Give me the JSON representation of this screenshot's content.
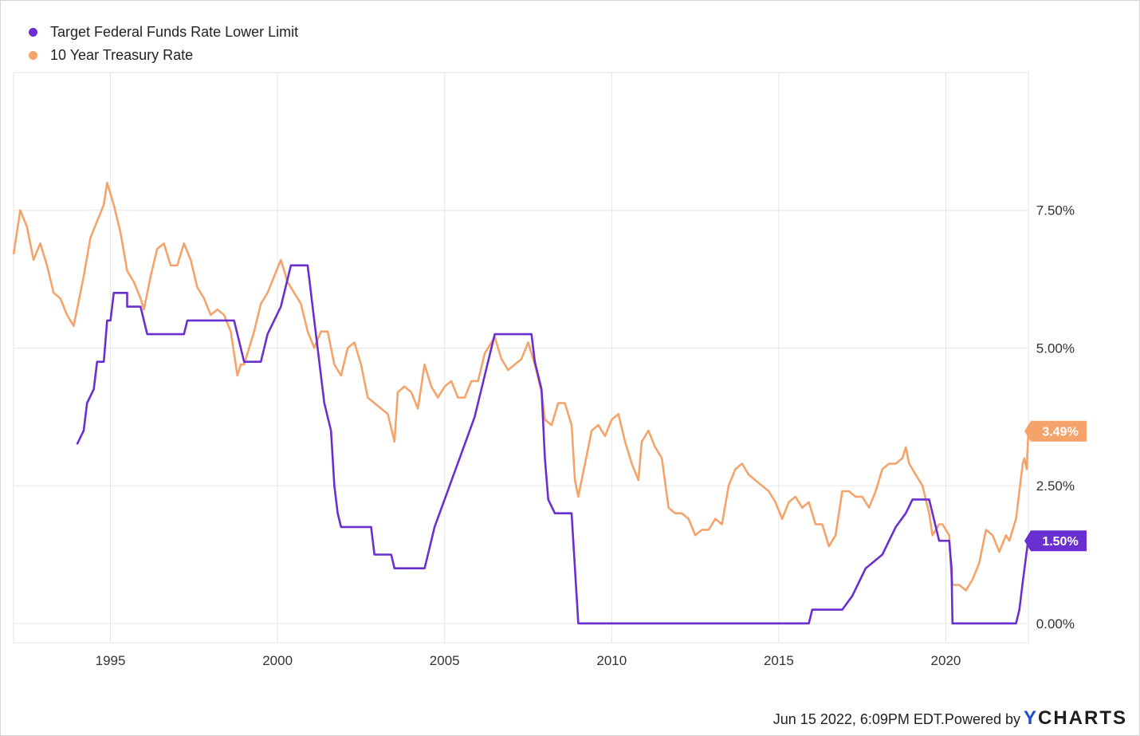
{
  "chart_data": {
    "type": "line",
    "title": "",
    "xlabel": "",
    "ylabel": "",
    "xlim": [
      1992.1,
      2022.47
    ],
    "ylim": [
      -0.35,
      10.0
    ],
    "x_ticks": [
      1995,
      2000,
      2005,
      2010,
      2015,
      2020
    ],
    "x_tick_labels": [
      "1995",
      "2000",
      "2005",
      "2010",
      "2015",
      "2020"
    ],
    "y_ticks": [
      0,
      2.5,
      5,
      7.5
    ],
    "y_tick_labels": [
      "0.00%",
      "2.50%",
      "5.00%",
      "7.50%"
    ],
    "grid": true,
    "legend_position": "top-left",
    "series": [
      {
        "name": "Target Federal Funds Rate Lower Limit",
        "color": "#6a2fd0",
        "end_label": "1.50%",
        "points": [
          [
            1994.0,
            3.25
          ],
          [
            1994.2,
            3.5
          ],
          [
            1994.3,
            4.0
          ],
          [
            1994.5,
            4.25
          ],
          [
            1994.6,
            4.75
          ],
          [
            1994.8,
            4.75
          ],
          [
            1994.9,
            5.5
          ],
          [
            1995.0,
            5.5
          ],
          [
            1995.1,
            6.0
          ],
          [
            1995.5,
            6.0
          ],
          [
            1995.5,
            5.75
          ],
          [
            1995.9,
            5.75
          ],
          [
            1996.0,
            5.5
          ],
          [
            1996.1,
            5.25
          ],
          [
            1997.2,
            5.25
          ],
          [
            1997.3,
            5.5
          ],
          [
            1998.7,
            5.5
          ],
          [
            1998.8,
            5.25
          ],
          [
            1998.9,
            5.0
          ],
          [
            1999.0,
            4.75
          ],
          [
            1999.5,
            4.75
          ],
          [
            1999.6,
            5.0
          ],
          [
            1999.7,
            5.25
          ],
          [
            1999.9,
            5.5
          ],
          [
            2000.1,
            5.75
          ],
          [
            2000.2,
            6.0
          ],
          [
            2000.4,
            6.5
          ],
          [
            2000.9,
            6.5
          ],
          [
            2001.0,
            6.0
          ],
          [
            2001.1,
            5.5
          ],
          [
            2001.2,
            5.0
          ],
          [
            2001.3,
            4.5
          ],
          [
            2001.4,
            4.0
          ],
          [
            2001.6,
            3.5
          ],
          [
            2001.7,
            2.5
          ],
          [
            2001.8,
            2.0
          ],
          [
            2001.9,
            1.75
          ],
          [
            2002.8,
            1.75
          ],
          [
            2002.9,
            1.25
          ],
          [
            2003.4,
            1.25
          ],
          [
            2003.5,
            1.0
          ],
          [
            2004.4,
            1.0
          ],
          [
            2004.5,
            1.25
          ],
          [
            2004.7,
            1.75
          ],
          [
            2005.0,
            2.25
          ],
          [
            2005.3,
            2.75
          ],
          [
            2005.6,
            3.25
          ],
          [
            2005.9,
            3.75
          ],
          [
            2006.2,
            4.5
          ],
          [
            2006.4,
            5.0
          ],
          [
            2006.5,
            5.25
          ],
          [
            2007.6,
            5.25
          ],
          [
            2007.7,
            4.75
          ],
          [
            2007.8,
            4.5
          ],
          [
            2007.9,
            4.25
          ],
          [
            2008.0,
            3.0
          ],
          [
            2008.1,
            2.25
          ],
          [
            2008.3,
            2.0
          ],
          [
            2008.8,
            2.0
          ],
          [
            2008.9,
            1.0
          ],
          [
            2009.0,
            0.0
          ],
          [
            2015.9,
            0.0
          ],
          [
            2016.0,
            0.25
          ],
          [
            2016.9,
            0.25
          ],
          [
            2017.2,
            0.5
          ],
          [
            2017.4,
            0.75
          ],
          [
            2017.6,
            1.0
          ],
          [
            2018.1,
            1.25
          ],
          [
            2018.3,
            1.5
          ],
          [
            2018.5,
            1.75
          ],
          [
            2018.8,
            2.0
          ],
          [
            2019.0,
            2.25
          ],
          [
            2019.5,
            2.25
          ],
          [
            2019.6,
            2.0
          ],
          [
            2019.7,
            1.75
          ],
          [
            2019.8,
            1.5
          ],
          [
            2020.1,
            1.5
          ],
          [
            2020.17,
            1.0
          ],
          [
            2020.2,
            0.0
          ],
          [
            2022.1,
            0.0
          ],
          [
            2022.2,
            0.25
          ],
          [
            2022.3,
            0.75
          ],
          [
            2022.46,
            1.5
          ]
        ]
      },
      {
        "name": "10 Year Treasury Rate",
        "color": "#f4a46b",
        "end_label": "3.49%",
        "points": [
          [
            1992.1,
            6.7
          ],
          [
            1992.3,
            7.5
          ],
          [
            1992.5,
            7.2
          ],
          [
            1992.7,
            6.6
          ],
          [
            1992.9,
            6.9
          ],
          [
            1993.1,
            6.5
          ],
          [
            1993.3,
            6.0
          ],
          [
            1993.5,
            5.9
          ],
          [
            1993.7,
            5.6
          ],
          [
            1993.9,
            5.4
          ],
          [
            1994.0,
            5.7
          ],
          [
            1994.2,
            6.3
          ],
          [
            1994.4,
            7.0
          ],
          [
            1994.6,
            7.3
          ],
          [
            1994.8,
            7.6
          ],
          [
            1994.9,
            8.0
          ],
          [
            1995.1,
            7.6
          ],
          [
            1995.3,
            7.1
          ],
          [
            1995.5,
            6.4
          ],
          [
            1995.7,
            6.2
          ],
          [
            1995.9,
            5.9
          ],
          [
            1996.0,
            5.7
          ],
          [
            1996.2,
            6.3
          ],
          [
            1996.4,
            6.8
          ],
          [
            1996.6,
            6.9
          ],
          [
            1996.8,
            6.5
          ],
          [
            1997.0,
            6.5
          ],
          [
            1997.2,
            6.9
          ],
          [
            1997.4,
            6.6
          ],
          [
            1997.6,
            6.1
          ],
          [
            1997.8,
            5.9
          ],
          [
            1998.0,
            5.6
          ],
          [
            1998.2,
            5.7
          ],
          [
            1998.4,
            5.6
          ],
          [
            1998.6,
            5.3
          ],
          [
            1998.8,
            4.5
          ],
          [
            1998.9,
            4.7
          ],
          [
            1999.0,
            4.7
          ],
          [
            1999.3,
            5.3
          ],
          [
            1999.5,
            5.8
          ],
          [
            1999.7,
            6.0
          ],
          [
            1999.9,
            6.3
          ],
          [
            2000.1,
            6.6
          ],
          [
            2000.3,
            6.2
          ],
          [
            2000.5,
            6.0
          ],
          [
            2000.7,
            5.8
          ],
          [
            2000.9,
            5.3
          ],
          [
            2001.1,
            5.0
          ],
          [
            2001.3,
            5.3
          ],
          [
            2001.5,
            5.3
          ],
          [
            2001.7,
            4.7
          ],
          [
            2001.9,
            4.5
          ],
          [
            2002.1,
            5.0
          ],
          [
            2002.3,
            5.1
          ],
          [
            2002.5,
            4.7
          ],
          [
            2002.7,
            4.1
          ],
          [
            2002.9,
            4.0
          ],
          [
            2003.1,
            3.9
          ],
          [
            2003.3,
            3.8
          ],
          [
            2003.5,
            3.3
          ],
          [
            2003.6,
            4.2
          ],
          [
            2003.8,
            4.3
          ],
          [
            2004.0,
            4.2
          ],
          [
            2004.2,
            3.9
          ],
          [
            2004.4,
            4.7
          ],
          [
            2004.6,
            4.3
          ],
          [
            2004.8,
            4.1
          ],
          [
            2005.0,
            4.3
          ],
          [
            2005.2,
            4.4
          ],
          [
            2005.4,
            4.1
          ],
          [
            2005.6,
            4.1
          ],
          [
            2005.8,
            4.4
          ],
          [
            2006.0,
            4.4
          ],
          [
            2006.2,
            4.9
          ],
          [
            2006.4,
            5.1
          ],
          [
            2006.5,
            5.2
          ],
          [
            2006.7,
            4.8
          ],
          [
            2006.9,
            4.6
          ],
          [
            2007.1,
            4.7
          ],
          [
            2007.3,
            4.8
          ],
          [
            2007.5,
            5.1
          ],
          [
            2007.7,
            4.7
          ],
          [
            2007.9,
            4.2
          ],
          [
            2008.0,
            3.7
          ],
          [
            2008.2,
            3.6
          ],
          [
            2008.4,
            4.0
          ],
          [
            2008.6,
            4.0
          ],
          [
            2008.8,
            3.6
          ],
          [
            2008.9,
            2.6
          ],
          [
            2009.0,
            2.3
          ],
          [
            2009.2,
            2.9
          ],
          [
            2009.4,
            3.5
          ],
          [
            2009.6,
            3.6
          ],
          [
            2009.8,
            3.4
          ],
          [
            2010.0,
            3.7
          ],
          [
            2010.2,
            3.8
          ],
          [
            2010.4,
            3.3
          ],
          [
            2010.6,
            2.9
          ],
          [
            2010.8,
            2.6
          ],
          [
            2010.9,
            3.3
          ],
          [
            2011.1,
            3.5
          ],
          [
            2011.3,
            3.2
          ],
          [
            2011.5,
            3.0
          ],
          [
            2011.7,
            2.1
          ],
          [
            2011.9,
            2.0
          ],
          [
            2012.1,
            2.0
          ],
          [
            2012.3,
            1.9
          ],
          [
            2012.5,
            1.6
          ],
          [
            2012.7,
            1.7
          ],
          [
            2012.9,
            1.7
          ],
          [
            2013.1,
            1.9
          ],
          [
            2013.3,
            1.8
          ],
          [
            2013.5,
            2.5
          ],
          [
            2013.7,
            2.8
          ],
          [
            2013.9,
            2.9
          ],
          [
            2014.1,
            2.7
          ],
          [
            2014.3,
            2.6
          ],
          [
            2014.5,
            2.5
          ],
          [
            2014.7,
            2.4
          ],
          [
            2014.9,
            2.2
          ],
          [
            2015.1,
            1.9
          ],
          [
            2015.3,
            2.2
          ],
          [
            2015.5,
            2.3
          ],
          [
            2015.7,
            2.1
          ],
          [
            2015.9,
            2.2
          ],
          [
            2016.1,
            1.8
          ],
          [
            2016.3,
            1.8
          ],
          [
            2016.5,
            1.4
          ],
          [
            2016.7,
            1.6
          ],
          [
            2016.9,
            2.4
          ],
          [
            2017.1,
            2.4
          ],
          [
            2017.3,
            2.3
          ],
          [
            2017.5,
            2.3
          ],
          [
            2017.7,
            2.1
          ],
          [
            2017.9,
            2.4
          ],
          [
            2018.1,
            2.8
          ],
          [
            2018.3,
            2.9
          ],
          [
            2018.5,
            2.9
          ],
          [
            2018.7,
            3.0
          ],
          [
            2018.8,
            3.2
          ],
          [
            2018.9,
            2.9
          ],
          [
            2019.1,
            2.7
          ],
          [
            2019.3,
            2.5
          ],
          [
            2019.5,
            2.0
          ],
          [
            2019.6,
            1.6
          ],
          [
            2019.8,
            1.8
          ],
          [
            2019.9,
            1.8
          ],
          [
            2020.1,
            1.6
          ],
          [
            2020.15,
            1.0
          ],
          [
            2020.2,
            0.7
          ],
          [
            2020.4,
            0.7
          ],
          [
            2020.6,
            0.6
          ],
          [
            2020.8,
            0.8
          ],
          [
            2021.0,
            1.1
          ],
          [
            2021.2,
            1.7
          ],
          [
            2021.4,
            1.6
          ],
          [
            2021.6,
            1.3
          ],
          [
            2021.8,
            1.6
          ],
          [
            2021.9,
            1.5
          ],
          [
            2022.0,
            1.7
          ],
          [
            2022.1,
            1.9
          ],
          [
            2022.2,
            2.4
          ],
          [
            2022.3,
            2.9
          ],
          [
            2022.35,
            3.0
          ],
          [
            2022.42,
            2.8
          ],
          [
            2022.47,
            3.49
          ]
        ]
      }
    ]
  },
  "footer": {
    "timestamp": "Jun 15 2022, 6:09PM EDT.",
    "powered": " Powered by",
    "brand_y": "Y",
    "brand_rest": "CHARTS"
  }
}
